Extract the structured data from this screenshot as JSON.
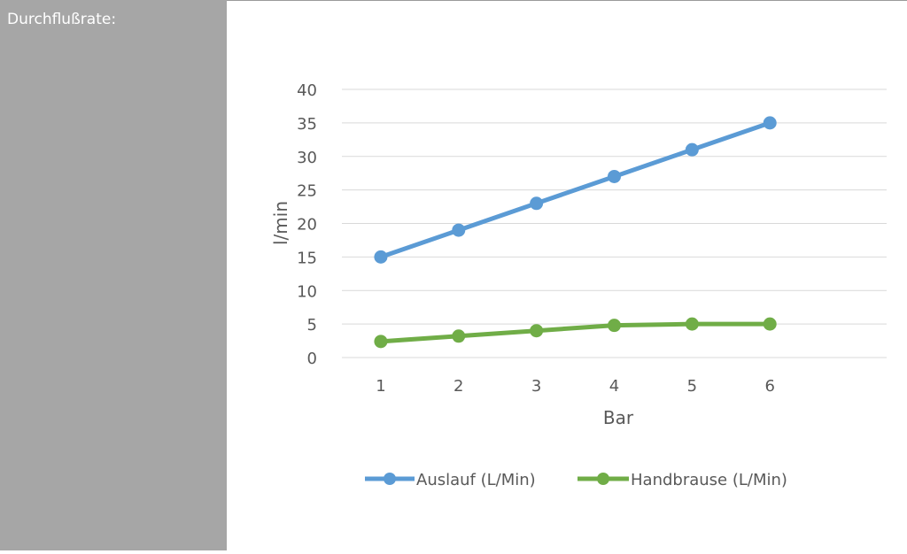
{
  "sidebar": {
    "label": "Durchflußrate:"
  },
  "chart_data": {
    "type": "line",
    "x": [
      1,
      2,
      3,
      4,
      5,
      6
    ],
    "xlabel": "Bar",
    "ylabel": "l/min",
    "ylim": [
      0,
      40
    ],
    "yticks": [
      0,
      5,
      10,
      15,
      20,
      25,
      30,
      35,
      40
    ],
    "grid": true,
    "legend_position": "bottom",
    "series": [
      {
        "name": "Auslauf (L/Min)",
        "color": "#5b9bd5",
        "values": [
          15,
          19,
          23,
          27,
          31,
          35
        ]
      },
      {
        "name": "Handbrause (L/Min)",
        "color": "#70ad47",
        "values": [
          2.4,
          3.2,
          4.0,
          4.8,
          5.0,
          5.0
        ]
      }
    ]
  }
}
